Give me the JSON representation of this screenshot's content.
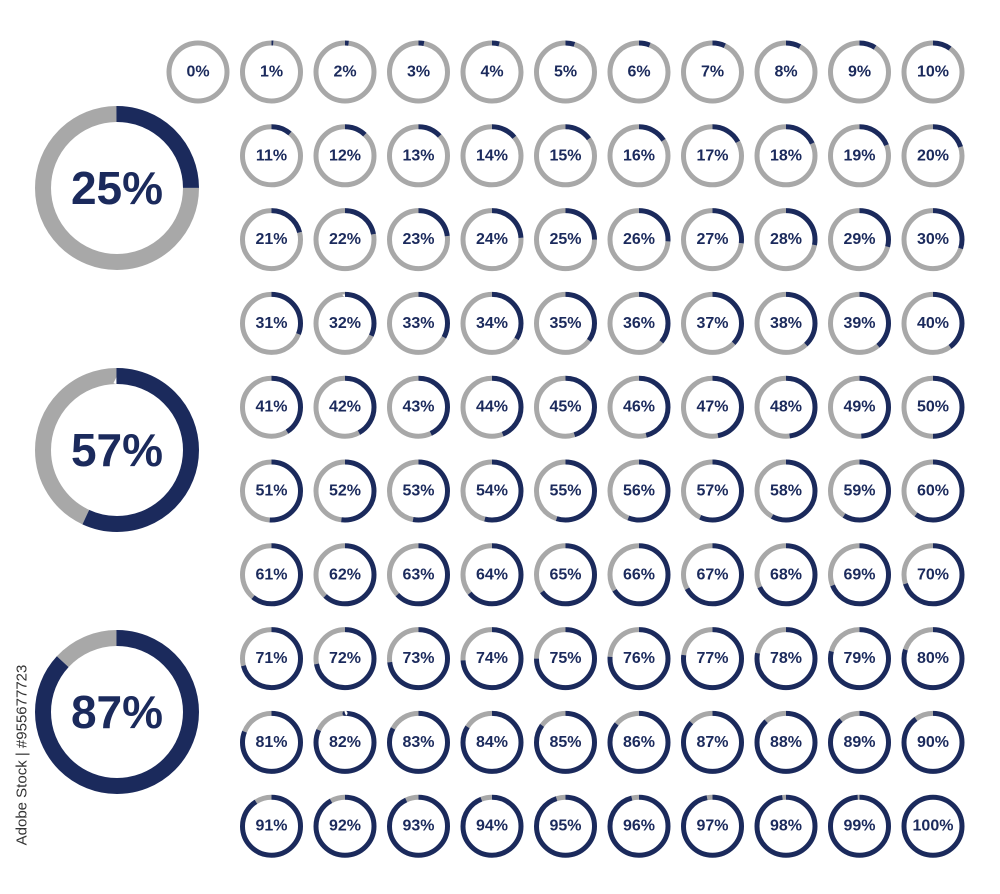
{
  "chart_data": [
    {
      "type": "progress-ring",
      "size": "large",
      "values": [
        25,
        57,
        87
      ],
      "value_labels": [
        "25%",
        "57%",
        "87%"
      ],
      "color": "#1b2a5c",
      "track_color": "#a8a8a8"
    },
    {
      "type": "progress-ring",
      "size": "small",
      "values": [
        0,
        1,
        2,
        3,
        4,
        5,
        6,
        7,
        8,
        9,
        10,
        11,
        12,
        13,
        14,
        15,
        16,
        17,
        18,
        19,
        20,
        21,
        22,
        23,
        24,
        25,
        26,
        27,
        28,
        29,
        30,
        31,
        32,
        33,
        34,
        35,
        36,
        37,
        38,
        39,
        40,
        41,
        42,
        43,
        44,
        45,
        46,
        47,
        48,
        49,
        50,
        51,
        52,
        53,
        54,
        55,
        56,
        57,
        58,
        59,
        60,
        61,
        62,
        63,
        64,
        65,
        66,
        67,
        68,
        69,
        70,
        71,
        72,
        73,
        74,
        75,
        76,
        77,
        78,
        79,
        80,
        81,
        82,
        83,
        84,
        85,
        86,
        87,
        88,
        89,
        90,
        91,
        92,
        93,
        94,
        95,
        96,
        97,
        98,
        99,
        100
      ],
      "value_labels": [
        "0%",
        "1%",
        "2%",
        "3%",
        "4%",
        "5%",
        "6%",
        "7%",
        "8%",
        "9%",
        "10%",
        "11%",
        "12%",
        "13%",
        "14%",
        "15%",
        "16%",
        "17%",
        "18%",
        "19%",
        "20%",
        "21%",
        "22%",
        "23%",
        "24%",
        "25%",
        "26%",
        "27%",
        "28%",
        "29%",
        "30%",
        "31%",
        "32%",
        "33%",
        "34%",
        "35%",
        "36%",
        "37%",
        "38%",
        "39%",
        "40%",
        "41%",
        "42%",
        "43%",
        "44%",
        "45%",
        "46%",
        "47%",
        "48%",
        "49%",
        "50%",
        "51%",
        "52%",
        "53%",
        "54%",
        "55%",
        "56%",
        "57%",
        "58%",
        "59%",
        "60%",
        "61%",
        "62%",
        "63%",
        "64%",
        "65%",
        "66%",
        "67%",
        "68%",
        "69%",
        "70%",
        "71%",
        "72%",
        "73%",
        "74%",
        "75%",
        "76%",
        "77%",
        "78%",
        "79%",
        "80%",
        "81%",
        "82%",
        "83%",
        "84%",
        "85%",
        "86%",
        "87%",
        "88%",
        "89%",
        "90%",
        "91%",
        "92%",
        "93%",
        "94%",
        "95%",
        "96%",
        "97%",
        "98%",
        "99%",
        "100%"
      ],
      "color": "#1b2a5c",
      "track_color": "#a8a8a8"
    }
  ],
  "side_text": "Adobe Stock | #955677723"
}
